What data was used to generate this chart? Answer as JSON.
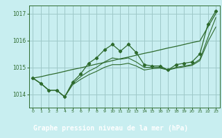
{
  "title": "Graphe pression niveau de la mer (hPa)",
  "bg_color": "#c8eef0",
  "label_bg": "#2d6a2d",
  "grid_color": "#9ec8c8",
  "line_color": "#2d6a2d",
  "xlim": [
    -0.5,
    23.5
  ],
  "ylim": [
    1013.5,
    1017.3
  ],
  "yticks": [
    1014,
    1015,
    1016,
    1017
  ],
  "xticks": [
    0,
    1,
    2,
    3,
    4,
    5,
    6,
    7,
    8,
    9,
    10,
    11,
    12,
    13,
    14,
    15,
    16,
    17,
    18,
    19,
    20,
    21,
    22,
    23
  ],
  "series_zigzag": [
    1014.6,
    1014.4,
    1014.15,
    1014.15,
    1013.9,
    1014.45,
    1014.75,
    1015.15,
    1015.35,
    1015.65,
    1015.85,
    1015.6,
    1015.85,
    1015.55,
    1015.1,
    1015.05,
    1015.05,
    1014.9,
    1015.1,
    1015.15,
    1015.2,
    1015.5,
    1016.6,
    1017.1
  ],
  "series_smooth1": [
    1014.6,
    1014.4,
    1014.15,
    1014.15,
    1013.9,
    1014.4,
    1014.65,
    1014.85,
    1015.0,
    1015.2,
    1015.35,
    1015.3,
    1015.35,
    1015.2,
    1015.0,
    1015.0,
    1015.0,
    1014.9,
    1015.0,
    1015.05,
    1015.1,
    1015.3,
    1016.1,
    1016.85
  ],
  "series_smooth2": [
    1014.6,
    1014.4,
    1014.15,
    1014.15,
    1013.9,
    1014.35,
    1014.55,
    1014.72,
    1014.85,
    1015.0,
    1015.1,
    1015.1,
    1015.15,
    1015.05,
    1014.9,
    1014.95,
    1014.97,
    1014.9,
    1014.97,
    1015.02,
    1015.07,
    1015.25,
    1015.95,
    1016.5
  ],
  "trend_line": [
    1014.6,
    1014.65,
    1014.72,
    1014.78,
    1014.85,
    1014.92,
    1014.98,
    1015.05,
    1015.12,
    1015.18,
    1015.25,
    1015.32,
    1015.38,
    1015.45,
    1015.52,
    1015.58,
    1015.65,
    1015.72,
    1015.78,
    1015.85,
    1015.92,
    1015.98,
    1016.5,
    1017.0
  ]
}
